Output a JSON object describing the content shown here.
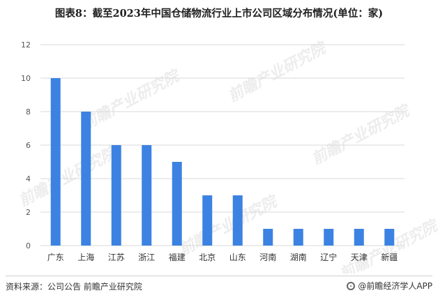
{
  "title": "图表8：截至2023年中国仓储物流行业上市公司区域分布情况(单位：家)",
  "source": "资料来源：公司公告 前瞻产业研究院",
  "brand": "@前瞻经济学人APP",
  "watermark": "前瞻产业研究院",
  "colors": {
    "bar": "#3c82e2",
    "grid": "#d9d9d9"
  },
  "chart_data": {
    "type": "bar",
    "categories": [
      "广东",
      "上海",
      "江苏",
      "浙江",
      "福建",
      "北京",
      "山东",
      "河南",
      "湖南",
      "辽宁",
      "天津",
      "新疆"
    ],
    "values": [
      10,
      8,
      6,
      6,
      5,
      3,
      3,
      1,
      1,
      1,
      1,
      1
    ],
    "ylim": [
      0,
      12
    ],
    "yticks": [
      0,
      2,
      4,
      6,
      8,
      10,
      12
    ],
    "grid": true
  }
}
